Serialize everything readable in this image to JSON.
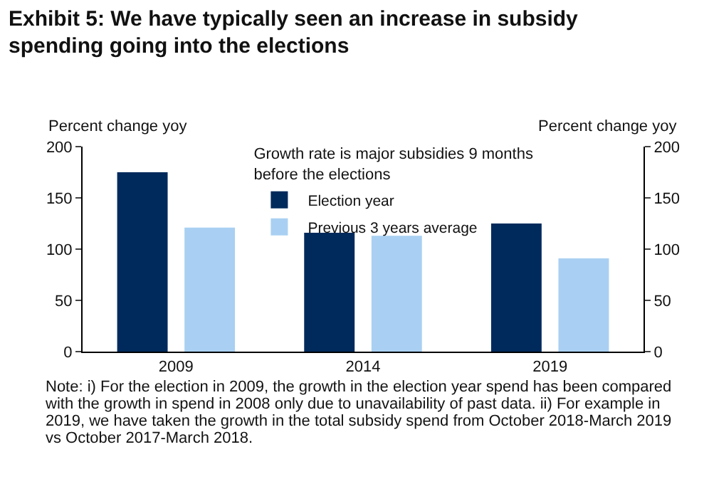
{
  "chart_data": {
    "type": "bar",
    "title": "Exhibit 5: We have typically seen an increase in subsidy spending going into the elections",
    "ylabel": "Percent change yoy",
    "y2label": "Percent change yoy",
    "legend_title": "Growth rate is major subsidies 9 months before the elections",
    "categories": [
      "2009",
      "2014",
      "2019"
    ],
    "series": [
      {
        "name": "Election year",
        "color": "#002a5c",
        "values": [
          175,
          116,
          125
        ]
      },
      {
        "name": "Previous 3 years average",
        "color": "#a9d0f2",
        "values": [
          121,
          113,
          91
        ]
      }
    ],
    "ylim": [
      0,
      200
    ],
    "yticks": [
      0,
      50,
      100,
      150,
      200
    ],
    "y2lim": [
      0,
      200
    ],
    "y2ticks": [
      0,
      50,
      100,
      150,
      200
    ],
    "legend": "top",
    "annotations": [
      "Note: i) For the election in 2009, the growth in the election year spend has been compared with the growth in spend in 2008 only due to unavailability of past data. ii) For example in 2019, we have taken the growth in the total subsidy spend from October 2018-March 2019 vs October 2017-March 2018."
    ]
  }
}
